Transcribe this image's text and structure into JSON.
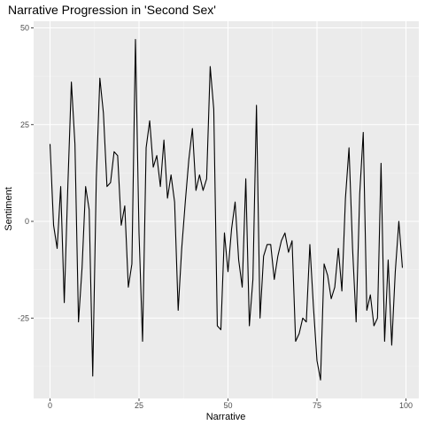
{
  "colors": {
    "panel_background": "#EBEBEB",
    "grid_major": "#FFFFFF",
    "grid_minor": "#F5F5F5",
    "line": "#000000",
    "tick_text": "#4D4D4D"
  },
  "chart_data": {
    "type": "line",
    "title": "Narrative Progression in 'Second Sex'",
    "xlabel": "Narrative",
    "ylabel": "Sentiment",
    "xlim": [
      0,
      100
    ],
    "ylim": [
      -45,
      50
    ],
    "x_ticks": [
      0,
      25,
      50,
      75,
      100
    ],
    "y_ticks": [
      -25,
      0,
      25,
      50
    ],
    "grid": true,
    "legend": "none",
    "series": [
      {
        "x": [
          0,
          1,
          2,
          3,
          4,
          5,
          6,
          7,
          8,
          9,
          10,
          11,
          12,
          13,
          14,
          15,
          16,
          17,
          18,
          19,
          20,
          21,
          22,
          23,
          24,
          25,
          26,
          27,
          28,
          29,
          30,
          31,
          32,
          33,
          34,
          35,
          36,
          37,
          38,
          39,
          40,
          41,
          42,
          43,
          44,
          45,
          46,
          47,
          48,
          49,
          50,
          51,
          52,
          53,
          54,
          55,
          56,
          57,
          58,
          59,
          60,
          61,
          62,
          63,
          64,
          65,
          66,
          67,
          68,
          69,
          70,
          71,
          72,
          73,
          74,
          75,
          76,
          77,
          78,
          79,
          80,
          81,
          82,
          83,
          84,
          85,
          86,
          87,
          88,
          89,
          90,
          91,
          92,
          93,
          94,
          95,
          96,
          97,
          98,
          99
        ],
        "y": [
          20,
          -1,
          -7,
          9,
          -21,
          9,
          36,
          20,
          -26,
          -12,
          9,
          3,
          -40,
          11,
          37,
          28,
          9,
          10,
          18,
          17,
          -1,
          4,
          -17,
          -11,
          47,
          -3,
          -31,
          19,
          26,
          14,
          17,
          9,
          21,
          6,
          12,
          5,
          -23,
          -7,
          5,
          16,
          24,
          8,
          12,
          8,
          11,
          40,
          29,
          -27,
          -28,
          -3,
          -13,
          -2,
          5,
          -10,
          -17,
          11,
          -27,
          -15,
          30,
          -25,
          -9,
          -6,
          -6,
          -15,
          -9,
          -5,
          -3,
          -8,
          -5,
          -31,
          -29,
          -25,
          -26,
          -6,
          -22,
          -36,
          -41,
          -11,
          -14,
          -20,
          -17,
          -7,
          -18,
          6,
          19,
          -7,
          -26,
          7,
          23,
          -23,
          -19,
          -27,
          -25,
          15,
          -31,
          -10,
          -32,
          -13,
          0,
          -12
        ]
      }
    ]
  }
}
